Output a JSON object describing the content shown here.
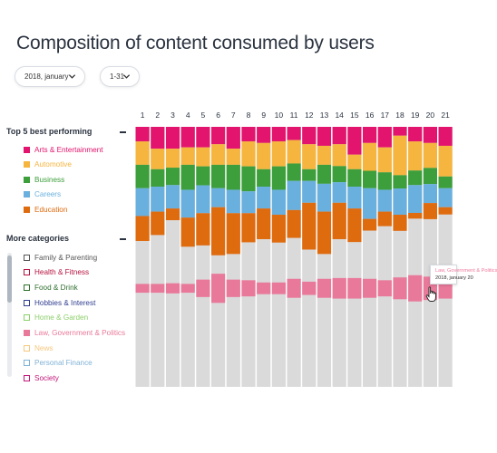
{
  "page": {
    "title": "Composition of content consumed by users"
  },
  "filters": {
    "month": {
      "value": "2018, january"
    },
    "days": {
      "value": "1-31"
    }
  },
  "legend": {
    "top5": {
      "title": "Top 5 best performing",
      "items": [
        {
          "label": "Arts & Entertainment",
          "color": "#e2146d"
        },
        {
          "label": "Automotive",
          "color": "#f6b53f"
        },
        {
          "label": "Business",
          "color": "#3d9f3b"
        },
        {
          "label": "Careers",
          "color": "#6ab0de"
        },
        {
          "label": "Education",
          "color": "#df6b0f"
        }
      ]
    },
    "more": {
      "title": "More categories",
      "items": [
        {
          "label": "Family & Parenting",
          "color": "#555555",
          "checked": false
        },
        {
          "label": "Health & Fitness",
          "color": "#b5123f",
          "checked": false
        },
        {
          "label": "Food & Drink",
          "color": "#2f6f2f",
          "checked": false
        },
        {
          "label": "Hobbies & Interest",
          "color": "#2f3d8f",
          "checked": false
        },
        {
          "label": "Home & Garden",
          "color": "#8ccf6a",
          "checked": false
        },
        {
          "label": "Law, Government & Politics",
          "color": "#e9799a",
          "checked": true
        },
        {
          "label": "News",
          "color": "#f6c77e",
          "checked": false
        },
        {
          "label": "Personal Finance",
          "color": "#7fb1d6",
          "checked": false
        },
        {
          "label": "Society",
          "color": "#c2177a",
          "checked": false
        }
      ]
    }
  },
  "tooltip": {
    "category": "Law, Government & Politics",
    "date": "2018, january 20"
  },
  "chart_data": {
    "type": "bar",
    "stacked": true,
    "x": [
      "1",
      "2",
      "3",
      "4",
      "5",
      "6",
      "7",
      "8",
      "9",
      "10",
      "11",
      "12",
      "13",
      "14",
      "15",
      "16",
      "17",
      "18",
      "19",
      "20",
      "21"
    ],
    "ylim": [
      0,
      100
    ],
    "series": [
      {
        "name": "Arts & Entertainment",
        "color": "#e2146d",
        "values": [
          5.6,
          8.4,
          8.4,
          7.9,
          7.9,
          6.7,
          8.4,
          5.6,
          6.2,
          5.6,
          5.1,
          6.7,
          7.3,
          6.7,
          10.7,
          6.2,
          7.9,
          3.4,
          5.6,
          6.2,
          7.3
        ]
      },
      {
        "name": "Automotive",
        "color": "#f6b53f",
        "values": [
          9.0,
          7.9,
          7.3,
          6.7,
          7.3,
          7.9,
          6.2,
          9.6,
          10.1,
          9.6,
          9.0,
          9.6,
          7.3,
          8.4,
          5.6,
          10.7,
          9.6,
          15.2,
          11.2,
          9.6,
          11.8
        ]
      },
      {
        "name": "Business",
        "color": "#3d9f3b",
        "values": [
          9.0,
          6.7,
          6.7,
          9.6,
          7.3,
          9.0,
          9.6,
          9.6,
          6.7,
          9.0,
          6.7,
          4.5,
          7.3,
          6.2,
          6.7,
          6.7,
          6.7,
          5.1,
          5.6,
          6.2,
          4.5
        ]
      },
      {
        "name": "Careers",
        "color": "#6ab0de",
        "values": [
          10.7,
          9.6,
          9.0,
          10.7,
          10.7,
          7.3,
          9.0,
          8.4,
          8.4,
          9.6,
          11.2,
          8.4,
          10.7,
          7.9,
          8.4,
          11.8,
          8.4,
          10.1,
          10.7,
          7.3,
          7.3
        ]
      },
      {
        "name": "Education",
        "color": "#df6b0f",
        "values": [
          9.6,
          9.0,
          4.5,
          11.2,
          12.4,
          18.5,
          15.7,
          11.2,
          11.8,
          10.7,
          10.7,
          18.0,
          16.3,
          14.0,
          12.9,
          4.5,
          5.6,
          6.2,
          2.2,
          6.2,
          2.8
        ]
      },
      {
        "name": "Law, Government & Politics",
        "color": "#e9799a",
        "values": [
          3.4,
          3.4,
          3.9,
          3.4,
          6.7,
          11.2,
          6.7,
          6.2,
          4.5,
          4.5,
          7.3,
          5.1,
          7.3,
          7.9,
          7.9,
          7.3,
          6.2,
          8.4,
          10.1,
          9.0,
          7.9
        ]
      }
    ],
    "other_fill": "#dadada"
  }
}
